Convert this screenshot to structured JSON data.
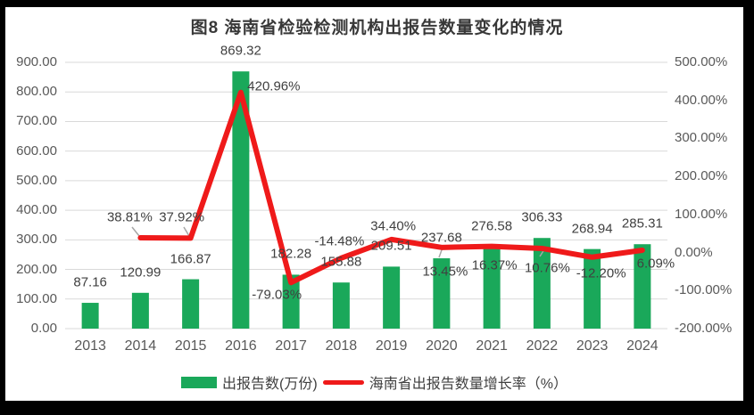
{
  "title": "图8 海南省检验检测机构出报告数量变化的情况",
  "colors": {
    "bar": "#1AA85A",
    "line": "#EF1A1A",
    "gridline": "#D9D9D9",
    "leader": "#A6A6A6",
    "axis_text": "#595959",
    "data_label": "#404040",
    "frame": "#000000",
    "background": "#FFFFFF"
  },
  "legend": [
    {
      "swatch": "bar-swatch",
      "label": "出报告数(万份)"
    },
    {
      "swatch": "line-swatch",
      "label": "海南省出报告数量增长率（%）"
    }
  ],
  "chart_data": {
    "type": "bar+line combo",
    "title": "图8 海南省检验检测机构出报告数量变化的情况",
    "categories": [
      "2013",
      "2014",
      "2015",
      "2016",
      "2017",
      "2018",
      "2019",
      "2020",
      "2021",
      "2022",
      "2023",
      "2024"
    ],
    "series": [
      {
        "name": "出报告数(万份)",
        "type": "bar",
        "axis": "left",
        "color": "#1AA85A",
        "values": [
          87.16,
          120.99,
          166.87,
          869.32,
          182.28,
          155.88,
          209.51,
          237.68,
          276.58,
          306.33,
          268.94,
          285.31
        ],
        "labels": [
          "87.16",
          "120.99",
          "166.87",
          "869.32",
          "182.28",
          "155.88",
          "209.51",
          "237.68",
          "276.58",
          "306.33",
          "268.94",
          "285.31"
        ]
      },
      {
        "name": "海南省出报告数量增长率（%）",
        "type": "line",
        "axis": "right",
        "color": "#EF1A1A",
        "start_category_index": 1,
        "values": [
          38.81,
          37.92,
          420.96,
          -79.03,
          -14.48,
          34.4,
          13.45,
          16.37,
          10.76,
          -12.2,
          6.09
        ],
        "labels": [
          "38.81%",
          "37.92%",
          "420.96%",
          "-79.03%",
          "-14.48%",
          "34.40%",
          "13.45%",
          "16.37%",
          "10.76%",
          "-12.20%",
          "6.09%"
        ]
      }
    ],
    "left_axis": {
      "min": 0,
      "max": 900,
      "step": 100,
      "ticks": [
        "900.00",
        "800.00",
        "700.00",
        "600.00",
        "500.00",
        "400.00",
        "300.00",
        "200.00",
        "100.00",
        "0.00"
      ]
    },
    "right_axis": {
      "min": -200,
      "max": 500,
      "step": 100,
      "ticks": [
        "500.00%",
        "400.00%",
        "300.00%",
        "200.00%",
        "100.00%",
        "0.00%",
        "-100.00%",
        "-200.00%"
      ]
    },
    "grid": "horizontal major gridlines only",
    "legend_position": "bottom center"
  }
}
